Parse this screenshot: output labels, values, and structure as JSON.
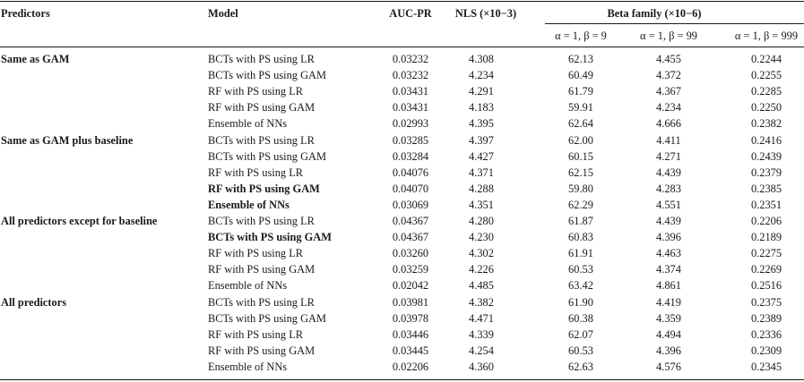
{
  "headers": {
    "predictors": "Predictors",
    "model": "Model",
    "auc_pr": "AUC-PR",
    "nls": "NLS (×10−3)",
    "beta_family": "Beta family (×10−6)",
    "beta_sub": [
      "α = 1, β = 9",
      "α = 1, β = 99",
      "α = 1, β = 999"
    ]
  },
  "rows": [
    {
      "group": "Same as GAM",
      "model": "BCTs with PS using LR",
      "bold": false,
      "auc": "0.03232",
      "nls": "4.308",
      "b1": "62.13",
      "b2": "4.455",
      "b3": "0.2244"
    },
    {
      "group": "",
      "model": "BCTs with PS using GAM",
      "bold": false,
      "auc": "0.03232",
      "nls": "4.234",
      "b1": "60.49",
      "b2": "4.372",
      "b3": "0.2255"
    },
    {
      "group": "",
      "model": "RF with PS using LR",
      "bold": false,
      "auc": "0.03431",
      "nls": "4.291",
      "b1": "61.79",
      "b2": "4.367",
      "b3": "0.2285"
    },
    {
      "group": "",
      "model": "RF with PS using GAM",
      "bold": false,
      "auc": "0.03431",
      "nls": "4.183",
      "b1": "59.91",
      "b2": "4.234",
      "b3": "0.2250"
    },
    {
      "group": "",
      "model": "Ensemble of NNs",
      "bold": false,
      "auc": "0.02993",
      "nls": "4.395",
      "b1": "62.64",
      "b2": "4.666",
      "b3": "0.2382"
    },
    {
      "group": "Same as GAM plus baseline",
      "model": "BCTs with PS using LR",
      "bold": false,
      "auc": "0.03285",
      "nls": "4.397",
      "b1": "62.00",
      "b2": "4.411",
      "b3": "0.2416"
    },
    {
      "group": "",
      "model": "BCTs with PS using GAM",
      "bold": false,
      "auc": "0.03284",
      "nls": "4.427",
      "b1": "60.15",
      "b2": "4.271",
      "b3": "0.2439"
    },
    {
      "group": "",
      "model": "RF with PS using LR",
      "bold": false,
      "auc": "0.04076",
      "nls": "4.371",
      "b1": "62.15",
      "b2": "4.439",
      "b3": "0.2379"
    },
    {
      "group": "",
      "model": "RF with PS using GAM",
      "bold": true,
      "auc": "0.04070",
      "nls": "4.288",
      "b1": "59.80",
      "b2": "4.283",
      "b3": "0.2385"
    },
    {
      "group": "",
      "model": "Ensemble of NNs",
      "bold": true,
      "auc": "0.03069",
      "nls": "4.351",
      "b1": "62.29",
      "b2": "4.551",
      "b3": "0.2351"
    },
    {
      "group": "All predictors except for baseline",
      "model": "BCTs with PS using LR",
      "bold": false,
      "auc": "0.04367",
      "nls": "4.280",
      "b1": "61.87",
      "b2": "4.439",
      "b3": "0.2206"
    },
    {
      "group": "",
      "model": "BCTs with PS using GAM",
      "bold": true,
      "auc": "0.04367",
      "nls": "4.230",
      "b1": "60.83",
      "b2": "4.396",
      "b3": "0.2189"
    },
    {
      "group": "",
      "model": "RF with PS using LR",
      "bold": false,
      "auc": "0.03260",
      "nls": "4.302",
      "b1": "61.91",
      "b2": "4.463",
      "b3": "0.2275"
    },
    {
      "group": "",
      "model": "RF with PS using GAM",
      "bold": false,
      "auc": "0.03259",
      "nls": "4.226",
      "b1": "60.53",
      "b2": "4.374",
      "b3": "0.2269"
    },
    {
      "group": "",
      "model": "Ensemble of NNs",
      "bold": false,
      "auc": "0.02042",
      "nls": "4.485",
      "b1": "63.42",
      "b2": "4.861",
      "b3": "0.2516"
    },
    {
      "group": "All predictors",
      "model": "BCTs with PS using LR",
      "bold": false,
      "auc": "0.03981",
      "nls": "4.382",
      "b1": "61.90",
      "b2": "4.419",
      "b3": "0.2375"
    },
    {
      "group": "",
      "model": "BCTs with PS using GAM",
      "bold": false,
      "auc": "0.03978",
      "nls": "4.471",
      "b1": "60.38",
      "b2": "4.359",
      "b3": "0.2389"
    },
    {
      "group": "",
      "model": "RF with PS using LR",
      "bold": false,
      "auc": "0.03446",
      "nls": "4.339",
      "b1": "62.07",
      "b2": "4.494",
      "b3": "0.2336"
    },
    {
      "group": "",
      "model": "RF with PS using GAM",
      "bold": false,
      "auc": "0.03445",
      "nls": "4.254",
      "b1": "60.53",
      "b2": "4.396",
      "b3": "0.2309"
    },
    {
      "group": "",
      "model": "Ensemble of NNs",
      "bold": false,
      "auc": "0.02206",
      "nls": "4.360",
      "b1": "62.63",
      "b2": "4.576",
      "b3": "0.2345"
    }
  ]
}
